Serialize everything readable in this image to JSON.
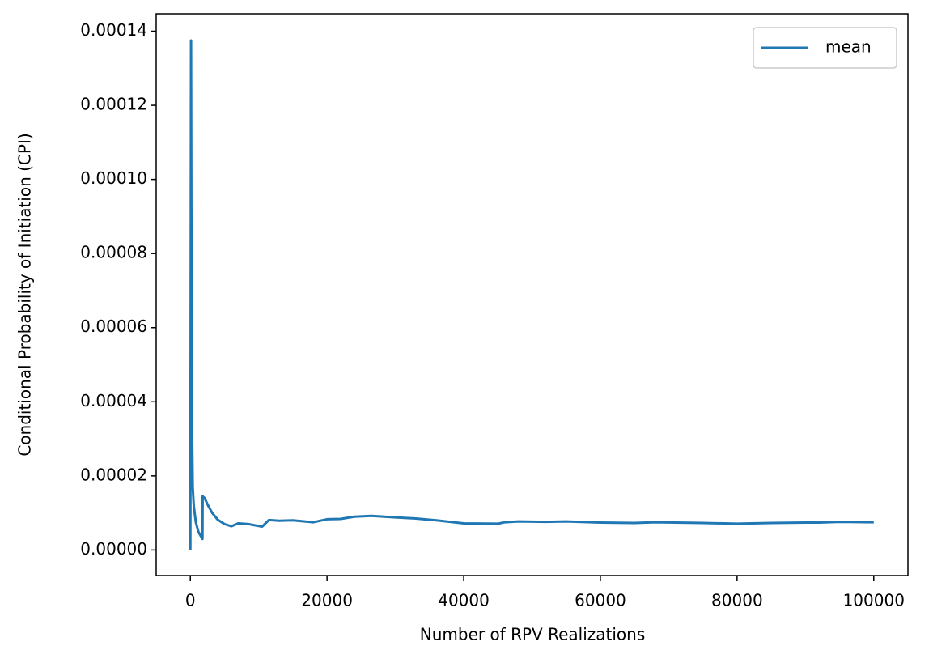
{
  "chart_data": {
    "type": "line",
    "xlabel": "Number of RPV Realizations",
    "ylabel": "Conditional Probability of Initiation (CPI)",
    "x": [
      0,
      100,
      200,
      350,
      500,
      800,
      1200,
      1775,
      1800,
      2100,
      2600,
      3200,
      4000,
      5000,
      6000,
      7000,
      8500,
      10500,
      11000,
      11500,
      13000,
      15000,
      18000,
      20000,
      22000,
      24000,
      26500,
      30000,
      33000,
      36000,
      40000,
      45000,
      46000,
      48000,
      52000,
      55000,
      60000,
      65000,
      68000,
      75000,
      80000,
      85000,
      90000,
      92000,
      95000,
      100000
    ],
    "series": [
      {
        "name": "mean",
        "color": "#1f77b4",
        "values": [
          0,
          0.0001375,
          4e-05,
          1.7e-05,
          1.2e-05,
          7.5e-06,
          4.8e-06,
          3e-06,
          1.45e-05,
          1.4e-05,
          1.2e-05,
          1e-05,
          8.2e-06,
          7e-06,
          6.4e-06,
          7.2e-06,
          7e-06,
          6.3e-06,
          7.2e-06,
          8.1e-06,
          7.9e-06,
          8e-06,
          7.5e-06,
          8.3e-06,
          8.4e-06,
          9e-06,
          9.2e-06,
          8.8e-06,
          8.5e-06,
          8e-06,
          7.2e-06,
          7.1e-06,
          7.5e-06,
          7.7e-06,
          7.6e-06,
          7.7e-06,
          7.4e-06,
          7.3e-06,
          7.5e-06,
          7.3e-06,
          7.1e-06,
          7.3e-06,
          7.4e-06,
          7.4e-06,
          7.6e-06,
          7.5e-06
        ]
      }
    ],
    "xlim": [
      -5000,
      105000
    ],
    "xticks": [
      0,
      20000,
      40000,
      60000,
      80000,
      100000
    ],
    "ylim": [
      -6.9e-06,
      0.0001447
    ],
    "yticks": [
      {
        "value": 0,
        "label": "0.00000"
      },
      {
        "value": 2e-05,
        "label": "0.00002"
      },
      {
        "value": 4e-05,
        "label": "0.00004"
      },
      {
        "value": 6e-05,
        "label": "0.00006"
      },
      {
        "value": 8e-05,
        "label": "0.00008"
      },
      {
        "value": 0.0001,
        "label": "0.00010"
      },
      {
        "value": 0.00012,
        "label": "0.00012"
      },
      {
        "value": 0.00014,
        "label": "0.00014"
      }
    ],
    "grid": false,
    "legend": "upper right"
  }
}
